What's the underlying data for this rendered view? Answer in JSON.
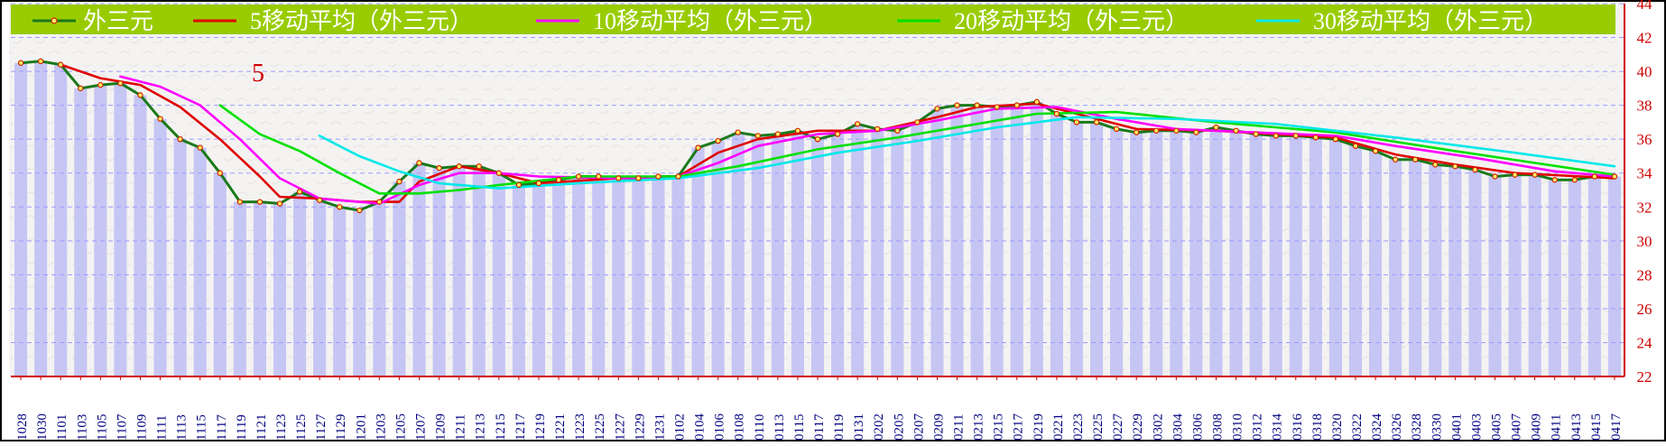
{
  "chart_data": {
    "type": "line",
    "title": "",
    "xlabel": "",
    "ylabel": "",
    "annotation": "5",
    "ylim": [
      22,
      44
    ],
    "yticks": [
      22,
      24,
      26,
      28,
      30,
      32,
      34,
      36,
      38,
      40,
      42,
      44
    ],
    "grid": true,
    "legend_position": "top",
    "x_labels": [
      "1028",
      "1030",
      "1101",
      "1103",
      "1105",
      "1107",
      "1109",
      "1111",
      "1113",
      "1115",
      "1117",
      "1119",
      "1121",
      "1123",
      "1125",
      "1127",
      "1129",
      "1201",
      "1203",
      "1205",
      "1207",
      "1209",
      "1211",
      "1213",
      "1215",
      "1217",
      "1219",
      "1221",
      "1223",
      "1225",
      "1227",
      "1229",
      "1231",
      "0102",
      "0104",
      "0106",
      "0108",
      "0110",
      "0113",
      "0115",
      "0117",
      "0119",
      "0131",
      "0202",
      "0205",
      "0207",
      "0209",
      "0211",
      "0213",
      "0215",
      "0217",
      "0219",
      "0221",
      "0223",
      "0225",
      "0227",
      "0229",
      "0302",
      "0304",
      "0306",
      "0308",
      "0310",
      "0312",
      "0314",
      "0316",
      "0318",
      "0320",
      "0322",
      "0324",
      "0326",
      "0328",
      "0330",
      "0401",
      "0403",
      "0405",
      "0407",
      "0409",
      "0411",
      "0413",
      "0415",
      "0417"
    ],
    "colors": {
      "legend_bg": "#99cc00",
      "bar": "#c6c6f4",
      "grid": "#9b9bff",
      "axis_label": "#cc0000",
      "x_label": "#000080"
    },
    "series": [
      {
        "name": "外三元",
        "color": "#1a7a1a",
        "marker": "circle",
        "points": [
          [
            0,
            40.5
          ],
          [
            1,
            40.6
          ],
          [
            2,
            40.4
          ],
          [
            3,
            39.0
          ],
          [
            4,
            39.2
          ],
          [
            5,
            39.3
          ],
          [
            6,
            38.6
          ],
          [
            7,
            37.2
          ],
          [
            8,
            36.0
          ],
          [
            9,
            35.5
          ],
          [
            10,
            34.0
          ],
          [
            11,
            32.3
          ],
          [
            12,
            32.3
          ],
          [
            13,
            32.2
          ],
          [
            14,
            32.9
          ],
          [
            15,
            32.4
          ],
          [
            16,
            32.0
          ],
          [
            17,
            31.8
          ],
          [
            18,
            32.3
          ],
          [
            19,
            33.5
          ],
          [
            20,
            34.6
          ],
          [
            21,
            34.3
          ],
          [
            22,
            34.4
          ],
          [
            23,
            34.4
          ],
          [
            24,
            34.0
          ],
          [
            25,
            33.3
          ],
          [
            26,
            33.4
          ],
          [
            27,
            33.6
          ],
          [
            28,
            33.8
          ],
          [
            29,
            33.8
          ],
          [
            30,
            33.7
          ],
          [
            31,
            33.7
          ],
          [
            32,
            33.8
          ],
          [
            33,
            33.8
          ],
          [
            34,
            35.5
          ],
          [
            35,
            35.9
          ],
          [
            36,
            36.4
          ],
          [
            37,
            36.2
          ],
          [
            38,
            36.3
          ],
          [
            39,
            36.5
          ],
          [
            40,
            36.0
          ],
          [
            41,
            36.3
          ],
          [
            42,
            36.9
          ],
          [
            43,
            36.6
          ],
          [
            44,
            36.5
          ],
          [
            45,
            37.0
          ],
          [
            46,
            37.8
          ],
          [
            47,
            38.0
          ],
          [
            48,
            38.0
          ],
          [
            49,
            37.9
          ],
          [
            50,
            38.0
          ],
          [
            51,
            38.2
          ],
          [
            52,
            37.5
          ],
          [
            53,
            37.0
          ],
          [
            54,
            37.0
          ],
          [
            55,
            36.6
          ],
          [
            56,
            36.4
          ],
          [
            57,
            36.5
          ],
          [
            58,
            36.5
          ],
          [
            59,
            36.4
          ],
          [
            60,
            36.7
          ],
          [
            61,
            36.5
          ],
          [
            62,
            36.3
          ],
          [
            63,
            36.2
          ],
          [
            64,
            36.2
          ],
          [
            65,
            36.1
          ],
          [
            66,
            36.0
          ],
          [
            67,
            35.6
          ],
          [
            68,
            35.3
          ],
          [
            69,
            34.8
          ],
          [
            70,
            34.8
          ],
          [
            71,
            34.5
          ],
          [
            72,
            34.4
          ],
          [
            73,
            34.2
          ],
          [
            74,
            33.8
          ],
          [
            75,
            33.9
          ],
          [
            76,
            33.9
          ],
          [
            77,
            33.6
          ],
          [
            78,
            33.6
          ],
          [
            79,
            33.8
          ],
          [
            80,
            33.8
          ]
        ]
      },
      {
        "name": "5移动平均（外三元）",
        "color": "#e00000",
        "points": [
          [
            2,
            40.4
          ],
          [
            4,
            39.6
          ],
          [
            6,
            39.2
          ],
          [
            8,
            37.9
          ],
          [
            10,
            36.0
          ],
          [
            12,
            33.8
          ],
          [
            13,
            32.6
          ],
          [
            15,
            32.5
          ],
          [
            17,
            32.3
          ],
          [
            19,
            32.3
          ],
          [
            20,
            33.5
          ],
          [
            22,
            34.4
          ],
          [
            24,
            34.0
          ],
          [
            26,
            33.4
          ],
          [
            30,
            33.7
          ],
          [
            33,
            33.8
          ],
          [
            35,
            35.2
          ],
          [
            37,
            36.0
          ],
          [
            40,
            36.5
          ],
          [
            43,
            36.5
          ],
          [
            46,
            37.3
          ],
          [
            48,
            37.9
          ],
          [
            51,
            38.1
          ],
          [
            53,
            37.5
          ],
          [
            56,
            36.6
          ],
          [
            60,
            36.5
          ],
          [
            63,
            36.3
          ],
          [
            66,
            36.1
          ],
          [
            69,
            35.1
          ],
          [
            72,
            34.5
          ],
          [
            75,
            34.0
          ],
          [
            80,
            33.7
          ]
        ]
      },
      {
        "name": "10移动平均（外三元）",
        "color": "#ff00ff",
        "points": [
          [
            5,
            39.7
          ],
          [
            7,
            39.1
          ],
          [
            9,
            38.0
          ],
          [
            11,
            36.0
          ],
          [
            13,
            33.7
          ],
          [
            15,
            32.5
          ],
          [
            18,
            32.2
          ],
          [
            20,
            33.3
          ],
          [
            22,
            34.0
          ],
          [
            24,
            34.0
          ],
          [
            26,
            33.8
          ],
          [
            30,
            33.7
          ],
          [
            33,
            33.8
          ],
          [
            35,
            34.6
          ],
          [
            37,
            35.6
          ],
          [
            40,
            36.3
          ],
          [
            43,
            36.5
          ],
          [
            46,
            37.1
          ],
          [
            49,
            37.8
          ],
          [
            52,
            37.9
          ],
          [
            55,
            37.2
          ],
          [
            58,
            36.6
          ],
          [
            62,
            36.4
          ],
          [
            66,
            36.2
          ],
          [
            69,
            35.6
          ],
          [
            73,
            34.9
          ],
          [
            77,
            34.1
          ],
          [
            80,
            33.8
          ]
        ]
      },
      {
        "name": "20移动平均（外三元）",
        "color": "#00e000",
        "points": [
          [
            10,
            38.0
          ],
          [
            12,
            36.3
          ],
          [
            14,
            35.3
          ],
          [
            16,
            34.0
          ],
          [
            18,
            32.8
          ],
          [
            20,
            32.8
          ],
          [
            22,
            33.0
          ],
          [
            24,
            33.3
          ],
          [
            28,
            33.8
          ],
          [
            33,
            33.8
          ],
          [
            36,
            34.4
          ],
          [
            40,
            35.4
          ],
          [
            44,
            36.1
          ],
          [
            48,
            36.9
          ],
          [
            51,
            37.5
          ],
          [
            55,
            37.6
          ],
          [
            60,
            37.0
          ],
          [
            66,
            36.4
          ],
          [
            72,
            35.3
          ],
          [
            80,
            33.9
          ]
        ]
      },
      {
        "name": "30移动平均（外三元）",
        "color": "#00e8e8",
        "points": [
          [
            15,
            36.2
          ],
          [
            17,
            35.0
          ],
          [
            19,
            34.1
          ],
          [
            21,
            33.4
          ],
          [
            24,
            33.1
          ],
          [
            28,
            33.4
          ],
          [
            33,
            33.7
          ],
          [
            37,
            34.3
          ],
          [
            41,
            35.2
          ],
          [
            45,
            35.9
          ],
          [
            49,
            36.7
          ],
          [
            53,
            37.3
          ],
          [
            58,
            37.2
          ],
          [
            63,
            36.9
          ],
          [
            69,
            36.1
          ],
          [
            75,
            35.2
          ],
          [
            80,
            34.4
          ]
        ]
      }
    ]
  }
}
